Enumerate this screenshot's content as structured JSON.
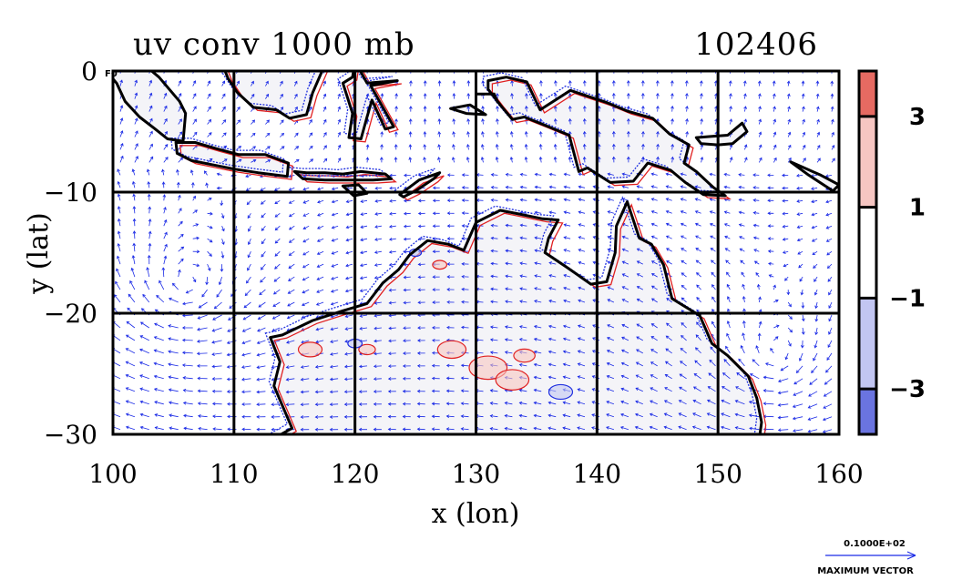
{
  "chart_data": {
    "type": "heatmap",
    "title": "uv conv 1000 mb",
    "date_label": "102406",
    "xlabel": "x (lon)",
    "ylabel": "y (lat)",
    "xlim": [
      100,
      160
    ],
    "ylim": [
      -30,
      0
    ],
    "x_ticks": [
      100,
      110,
      120,
      130,
      140,
      150,
      160
    ],
    "x_tick_labels": [
      "100",
      "110",
      "120",
      "130",
      "140",
      "150",
      "160"
    ],
    "y_ticks": [
      0,
      -10,
      -20,
      -30
    ],
    "y_tick_labels": [
      "0",
      "−10",
      "−20",
      "−30"
    ],
    "grid": true,
    "grid_lines_x": [
      110,
      120,
      130,
      140,
      150
    ],
    "grid_lines_y": [
      -10,
      -20
    ],
    "colorbar": {
      "levels": [
        -4,
        -3,
        -1,
        1,
        3,
        4
      ],
      "tick_values": [
        3,
        1,
        -1,
        -3
      ],
      "tick_labels": [
        "3",
        "1",
        "−1",
        "−3"
      ],
      "colors": [
        "#6a74e0",
        "#c2c6f2",
        "#ffffff",
        "#f6c6c2",
        "#e66a62"
      ]
    },
    "contours": {
      "positive_color": "#e02020",
      "negative_color": "#2030e0",
      "coast_color": "#000000"
    },
    "vector_color": "#1a2ae6",
    "vector_key": {
      "magnitude_label": "0.1000E+02",
      "caption": "MAXIMUM VECTOR"
    }
  },
  "origin_mark": "F0"
}
